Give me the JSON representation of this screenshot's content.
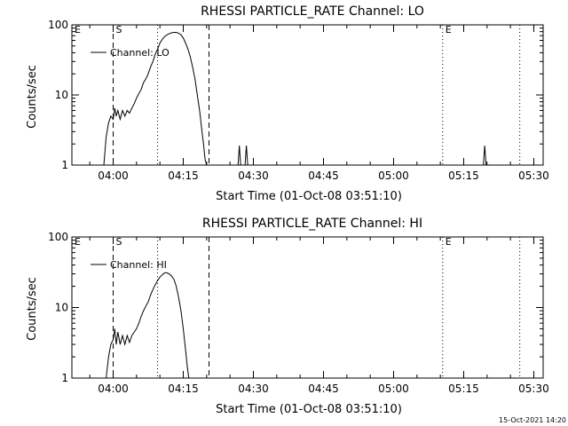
{
  "footer": {
    "timestamp": "15-Oct-2021 14:20"
  },
  "chart_data": [
    {
      "type": "line",
      "title": "RHESSI PARTICLE_RATE Channel: LO",
      "xlabel": "Start Time (01-Oct-08 03:51:10)",
      "ylabel": "Counts/sec",
      "yscale": "log",
      "ylim": [
        1,
        100
      ],
      "xlim": [
        "03:51:10",
        "05:32:00"
      ],
      "x_ticks": [
        "04:00",
        "04:15",
        "04:30",
        "04:45",
        "05:00",
        "05:15",
        "05:30"
      ],
      "y_ticks": [
        "1",
        "10",
        "100"
      ],
      "legend": {
        "entries": [
          "Channel: LO"
        ],
        "position": "top-left"
      },
      "markers": [
        {
          "label": "E",
          "time": "03:51:10",
          "style": "none"
        },
        {
          "label": "S",
          "time": "04:00:00",
          "style": "dashed"
        },
        {
          "label": "",
          "time": "04:09:30",
          "style": "dotted"
        },
        {
          "label": "",
          "time": "04:20:30",
          "style": "dashed"
        },
        {
          "label": "E",
          "time": "05:10:30",
          "style": "dotted"
        },
        {
          "label": "",
          "time": "05:27:00",
          "style": "dotted"
        }
      ],
      "series": [
        {
          "name": "Channel: LO",
          "color": "#000000",
          "points": [
            [
              "03:58:00",
              1
            ],
            [
              "03:58:30",
              2.5
            ],
            [
              "03:59:00",
              4
            ],
            [
              "03:59:30",
              5
            ],
            [
              "04:00:00",
              4.5
            ],
            [
              "04:00:20",
              6.5
            ],
            [
              "04:00:40",
              5
            ],
            [
              "04:01:00",
              6
            ],
            [
              "04:01:30",
              4.5
            ],
            [
              "04:02:00",
              6
            ],
            [
              "04:02:30",
              5
            ],
            [
              "04:03:00",
              6
            ],
            [
              "04:03:30",
              5.5
            ],
            [
              "04:04:00",
              6.5
            ],
            [
              "04:04:30",
              7.5
            ],
            [
              "04:05:00",
              9
            ],
            [
              "04:05:30",
              10.5
            ],
            [
              "04:06:00",
              12
            ],
            [
              "04:06:30",
              15
            ],
            [
              "04:07:00",
              17
            ],
            [
              "04:07:30",
              20
            ],
            [
              "04:08:00",
              25
            ],
            [
              "04:08:30",
              30
            ],
            [
              "04:09:00",
              38
            ],
            [
              "04:09:30",
              45
            ],
            [
              "04:10:00",
              55
            ],
            [
              "04:10:30",
              62
            ],
            [
              "04:11:00",
              68
            ],
            [
              "04:11:30",
              72
            ],
            [
              "04:12:00",
              75
            ],
            [
              "04:12:30",
              77
            ],
            [
              "04:13:00",
              78
            ],
            [
              "04:13:30",
              78
            ],
            [
              "04:14:00",
              76
            ],
            [
              "04:14:30",
              72
            ],
            [
              "04:15:00",
              65
            ],
            [
              "04:15:30",
              55
            ],
            [
              "04:16:00",
              45
            ],
            [
              "04:16:30",
              35
            ],
            [
              "04:17:00",
              25
            ],
            [
              "04:17:30",
              17
            ],
            [
              "04:18:00",
              10
            ],
            [
              "04:18:30",
              6
            ],
            [
              "04:19:00",
              3
            ],
            [
              "04:19:20",
              2
            ],
            [
              "04:19:40",
              1.2
            ],
            [
              "04:20:00",
              1
            ]
          ],
          "spikes": [
            [
              "04:27:00",
              1.9
            ],
            [
              "04:28:30",
              1.9
            ],
            [
              "05:19:30",
              1.9
            ]
          ]
        }
      ]
    },
    {
      "type": "line",
      "title": "RHESSI PARTICLE_RATE Channel: HI",
      "xlabel": "Start Time (01-Oct-08 03:51:10)",
      "ylabel": "Counts/sec",
      "yscale": "log",
      "ylim": [
        1,
        100
      ],
      "xlim": [
        "03:51:10",
        "05:32:00"
      ],
      "x_ticks": [
        "04:00",
        "04:15",
        "04:30",
        "04:45",
        "05:00",
        "05:15",
        "05:30"
      ],
      "y_ticks": [
        "1",
        "10",
        "100"
      ],
      "legend": {
        "entries": [
          "Channel: HI"
        ],
        "position": "top-left"
      },
      "markers": [
        {
          "label": "E",
          "time": "03:51:10",
          "style": "none"
        },
        {
          "label": "S",
          "time": "04:00:00",
          "style": "dashed"
        },
        {
          "label": "",
          "time": "04:09:30",
          "style": "dotted"
        },
        {
          "label": "",
          "time": "04:20:30",
          "style": "dashed"
        },
        {
          "label": "E",
          "time": "05:10:30",
          "style": "dotted"
        },
        {
          "label": "",
          "time": "05:27:00",
          "style": "dotted"
        }
      ],
      "series": [
        {
          "name": "Channel: HI",
          "color": "#000000",
          "points": [
            [
              "03:58:30",
              1
            ],
            [
              "03:59:00",
              2
            ],
            [
              "03:59:30",
              3
            ],
            [
              "04:00:00",
              3.5
            ],
            [
              "04:00:20",
              5
            ],
            [
              "04:00:40",
              3
            ],
            [
              "04:01:00",
              4.5
            ],
            [
              "04:01:30",
              3
            ],
            [
              "04:02:00",
              4
            ],
            [
              "04:02:30",
              3
            ],
            [
              "04:03:00",
              4
            ],
            [
              "04:03:30",
              3.2
            ],
            [
              "04:04:00",
              4
            ],
            [
              "04:04:30",
              4.5
            ],
            [
              "04:05:00",
              5
            ],
            [
              "04:05:30",
              6
            ],
            [
              "04:06:00",
              7.5
            ],
            [
              "04:06:30",
              9
            ],
            [
              "04:07:00",
              10.5
            ],
            [
              "04:07:30",
              12
            ],
            [
              "04:08:00",
              15
            ],
            [
              "04:08:30",
              18
            ],
            [
              "04:09:00",
              21
            ],
            [
              "04:09:30",
              24
            ],
            [
              "04:10:00",
              27
            ],
            [
              "04:10:30",
              29
            ],
            [
              "04:11:00",
              31
            ],
            [
              "04:11:30",
              31
            ],
            [
              "04:12:00",
              30
            ],
            [
              "04:12:30",
              28
            ],
            [
              "04:13:00",
              25
            ],
            [
              "04:13:30",
              20
            ],
            [
              "04:14:00",
              14
            ],
            [
              "04:14:30",
              9
            ],
            [
              "04:15:00",
              5
            ],
            [
              "04:15:30",
              2.5
            ],
            [
              "04:15:50",
              1.5
            ],
            [
              "04:16:10",
              1
            ]
          ],
          "spikes": []
        }
      ]
    }
  ]
}
